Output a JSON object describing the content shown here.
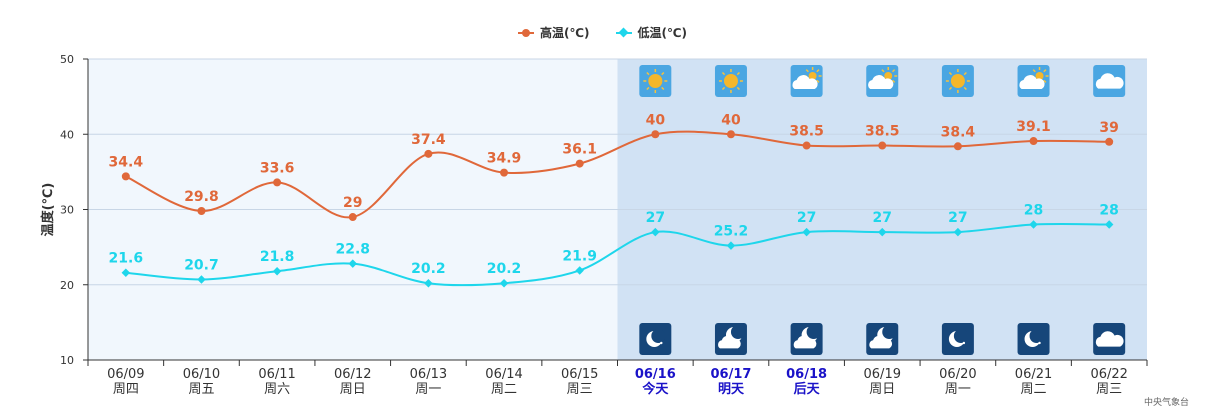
{
  "legend": {
    "high_label": "高温(℃)",
    "low_label": "低温(℃)"
  },
  "credit": "中央气象台",
  "colors": {
    "high": "#e0683a",
    "low": "#1ed6eb",
    "past_bg": "#f1f7fd",
    "forecast_bg": "#d1e2f4",
    "axis": "#333333",
    "grid": "#c8d6e6",
    "today_text": "#1a12c8"
  },
  "chart_data": {
    "type": "line",
    "ylabel": "温度(℃)",
    "ylim": [
      10,
      50
    ],
    "yticks": [
      10,
      20,
      30,
      40,
      50
    ],
    "categories": [
      "06/09",
      "06/10",
      "06/11",
      "06/12",
      "06/13",
      "06/14",
      "06/15",
      "06/16",
      "06/17",
      "06/18",
      "06/19",
      "06/20",
      "06/21",
      "06/22"
    ],
    "weekdays": [
      "周四",
      "周五",
      "周六",
      "周日",
      "周一",
      "周二",
      "周三",
      "今天",
      "明天",
      "后天",
      "周日",
      "周一",
      "周二",
      "周三"
    ],
    "highlight_days": [
      "06/16",
      "06/17",
      "06/18"
    ],
    "forecast_start": "06/16",
    "series": [
      {
        "name": "高温(℃)",
        "values": [
          34.4,
          29.8,
          33.6,
          29,
          37.4,
          34.9,
          36.1,
          40,
          40,
          38.5,
          38.5,
          38.4,
          39.1,
          39
        ]
      },
      {
        "name": "低温(℃)",
        "values": [
          21.6,
          20.7,
          21.8,
          22.8,
          20.2,
          20.2,
          21.9,
          27,
          25.2,
          27,
          27,
          27,
          28,
          28
        ]
      }
    ],
    "day_icons": [
      "sunny-icon",
      "sunny-icon",
      "partly-cloudy-icon",
      "partly-cloudy-icon",
      "sunny-icon",
      "partly-cloudy-icon",
      "cloudy-icon"
    ],
    "night_icons": [
      "clear-night-icon",
      "cloudy-night-icon",
      "cloudy-night-icon",
      "cloudy-night-icon",
      "clear-night-icon",
      "clear-night-icon",
      "cloudy-icon"
    ]
  }
}
